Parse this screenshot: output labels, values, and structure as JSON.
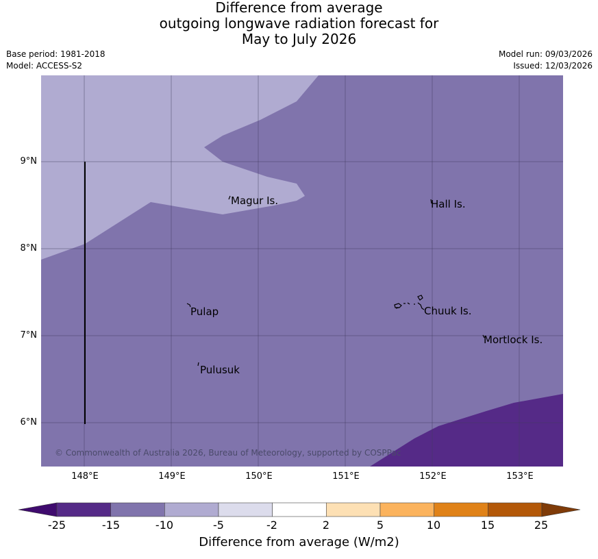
{
  "title": {
    "line1": "Difference from average",
    "line2": "outgoing longwave radiation forecast for",
    "line3": "May to July 2026"
  },
  "meta": {
    "base_period": "Base period: 1981-2018",
    "model": "Model: ACCESS-S2",
    "model_run": "Model run: 09/03/2026",
    "issued": "Issued: 12/03/2026"
  },
  "map": {
    "lon_ticks": [
      "148°E",
      "149°E",
      "150°E",
      "151°E",
      "152°E",
      "153°E"
    ],
    "lat_ticks": [
      "9°N",
      "8°N",
      "7°N",
      "6°N"
    ],
    "places": {
      "magur": "Magur Is.",
      "hall": "Hall Is.",
      "pulap": "Pulap",
      "chuuk": "Chuuk Is.",
      "mortlock": "Mortlock Is.",
      "pulusuk": "Pulusuk"
    },
    "copyright": "© Commonwealth of Australia 2026, Bureau of Meteorology, supported by COSPPac",
    "colors": {
      "light_purple": "#b0abd1",
      "mid_purple": "#8074ac",
      "dark_purple": "#552a87"
    }
  },
  "colorbar": {
    "ticks": [
      "-25",
      "-15",
      "-10",
      "-5",
      "-2",
      "2",
      "5",
      "10",
      "15",
      "25"
    ],
    "colors": [
      "#3f0b6e",
      "#552a87",
      "#8074ac",
      "#b0abd1",
      "#dcdcec",
      "#ffffff",
      "#fde0b4",
      "#fbb35d",
      "#e08218",
      "#b35808",
      "#7f3b08"
    ],
    "label": "Difference from average (W/m2)"
  }
}
